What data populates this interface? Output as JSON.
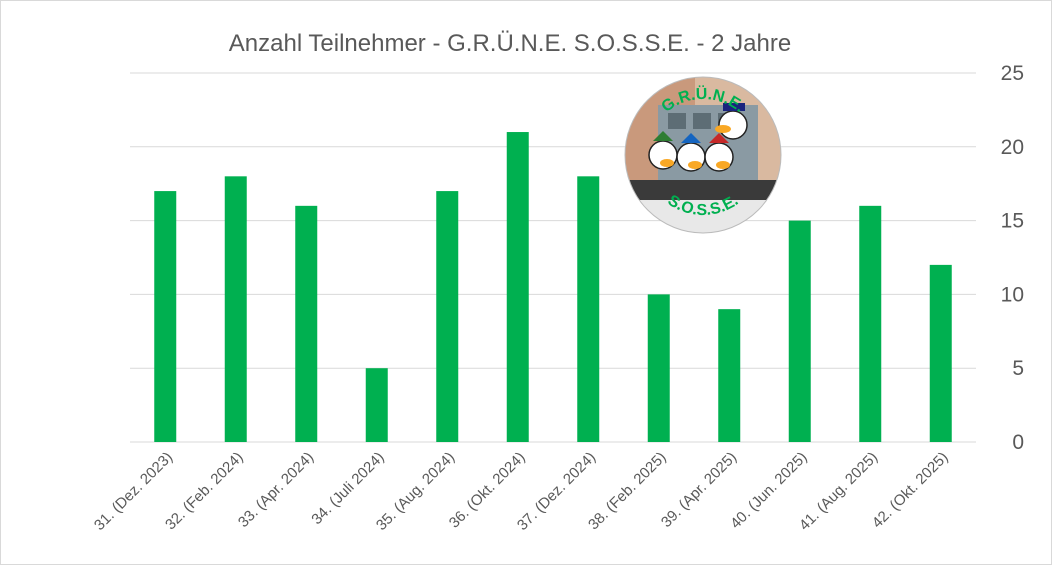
{
  "chart_data": {
    "type": "bar",
    "title": "Anzahl Teilnehmer - G.R.Ü.N.E. S.O.S.S.E. - 2 Jahre",
    "xlabel": "",
    "ylabel": "",
    "categories": [
      "31. (Dez. 2023)",
      "32. (Feb. 2024)",
      "33. (Apr. 2024)",
      "34. (Juli 2024)",
      "35. (Aug. 2024)",
      "36. (Okt. 2024)",
      "37. (Dez. 2024)",
      "38. (Feb. 2025)",
      "39. (Apr. 2025)",
      "40. (Jun. 2025)",
      "41. (Aug. 2025)",
      "42. (Okt. 2025)"
    ],
    "values": [
      17,
      18,
      16,
      5,
      17,
      21,
      18,
      10,
      9,
      15,
      16,
      12
    ],
    "ylim": [
      0,
      25
    ],
    "yticks": [
      "0",
      "5",
      "10",
      "15",
      "20",
      "25"
    ],
    "yaxis_side": "right",
    "grid": true,
    "legend": "none",
    "bar_color": "#00b050",
    "gridline_color": "#d9d9d9",
    "text_color": "#595959"
  },
  "logo": {
    "top_text": "G.R.Ü.N.E.",
    "bottom_text": "S.O.S.S.E."
  }
}
